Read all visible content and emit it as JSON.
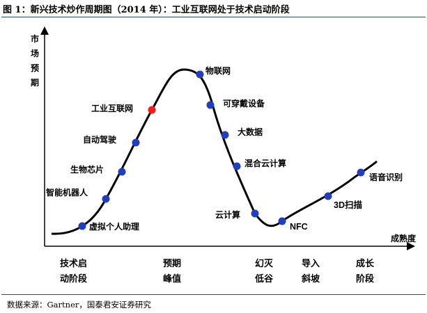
{
  "figure": {
    "title": "图 1：新兴技术炒作周期图（2014 年）：工业互联网处于技术启动阶段",
    "source": "数据来源：Gartner，国泰君安证券研究"
  },
  "chart_data": {
    "type": "line",
    "title": "新兴技术炒作周期图（2014 年）",
    "ylabel": "市场预期",
    "xlabel": "成熟度",
    "points": [
      {
        "label": "虚拟个人助理",
        "highlight": false
      },
      {
        "label": "智能机器人",
        "highlight": false
      },
      {
        "label": "生物芯片",
        "highlight": false
      },
      {
        "label": "自动驾驶",
        "highlight": false
      },
      {
        "label": "工业互联网",
        "highlight": true
      },
      {
        "label": "物联网",
        "highlight": false
      },
      {
        "label": "可穿戴设备",
        "highlight": false
      },
      {
        "label": "大数据",
        "highlight": false
      },
      {
        "label": "混合云计算",
        "highlight": false
      },
      {
        "label": "云计算",
        "highlight": false
      },
      {
        "label": "NFC",
        "highlight": false
      },
      {
        "label": "3D扫描",
        "highlight": false
      },
      {
        "label": "语音识别",
        "highlight": false
      }
    ],
    "stages": [
      {
        "lines": [
          "技术启",
          "动阶段"
        ]
      },
      {
        "lines": [
          "预期",
          "峰值"
        ]
      },
      {
        "lines": [
          "幻灭",
          "低谷"
        ]
      },
      {
        "lines": [
          "导入",
          "斜坡"
        ]
      },
      {
        "lines": [
          "成长",
          "阶段"
        ]
      }
    ],
    "colors": {
      "point": "#1f3fbf",
      "highlight": "#ff1a1a",
      "curve": "#000000",
      "rule": "#1f4e79"
    },
    "grid": false
  }
}
